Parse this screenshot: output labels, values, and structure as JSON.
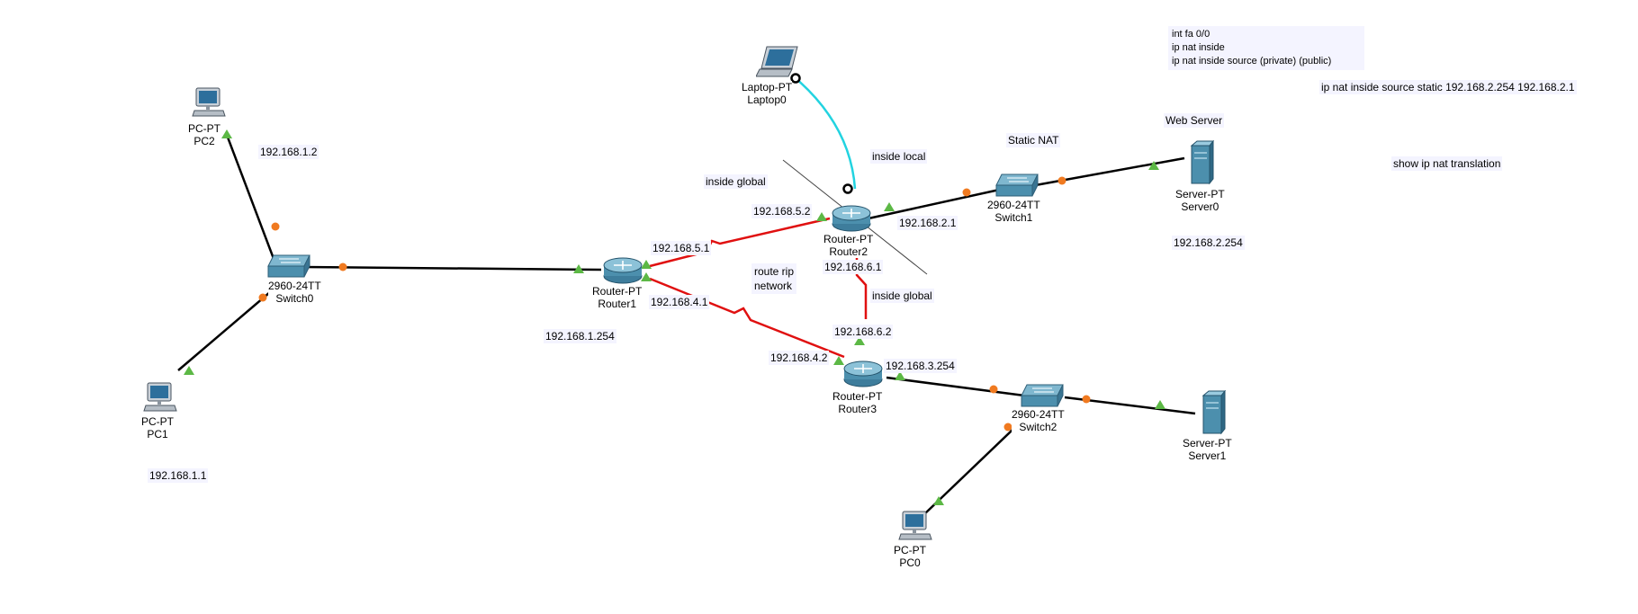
{
  "devices": {
    "pc2": {
      "model": "PC-PT",
      "name": "PC2"
    },
    "pc1": {
      "model": "PC-PT",
      "name": "PC1"
    },
    "pc0": {
      "model": "PC-PT",
      "name": "PC0"
    },
    "laptop0": {
      "model": "Laptop-PT",
      "name": "Laptop0"
    },
    "switch0": {
      "model": "2960-24TT",
      "name": "Switch0"
    },
    "switch1": {
      "model": "2960-24TT",
      "name": "Switch1"
    },
    "switch2": {
      "model": "2960-24TT",
      "name": "Switch2"
    },
    "router1": {
      "model": "Router-PT",
      "name": "Router1"
    },
    "router2": {
      "model": "Router-PT",
      "name": "Router2"
    },
    "router3": {
      "model": "Router-PT",
      "name": "Router3"
    },
    "server0": {
      "model": "Server-PT",
      "name": "Server0"
    },
    "server1": {
      "model": "Server-PT",
      "name": "Server1"
    }
  },
  "labels": {
    "pc2_ip": "192.168.1.2",
    "pc1_ip": "192.168.1.1",
    "router1_lan": "192.168.1.254",
    "r1_s1": "192.168.5.1",
    "r1_s2": "192.168.4.1",
    "r2_s1": "192.168.5.2",
    "r2_lan": "192.168.2.1",
    "r2_s2": "192.168.6.1",
    "r3_s1": "192.168.6.2",
    "r3_s2": "192.168.4.2",
    "r3_lan": "192.168.3.254",
    "server0_ip": "192.168.2.254",
    "inside_global_1": "inside global",
    "inside_global_2": "inside global",
    "inside_local": "inside local",
    "static_nat": "Static NAT",
    "web_server": "Web Server",
    "route_rip_1": "route rip",
    "route_rip_2": "network",
    "show_cmd": "show ip nat translation",
    "static_cmd": "ip nat inside source static 192.168.2.254 192.168.2.1"
  },
  "config_note": {
    "line1": "int fa 0/0",
    "line2": "ip nat inside",
    "line3": "ip nat inside source (private) (public)"
  },
  "colors": {
    "copper": "#000000",
    "serial": "#e01010",
    "console": "#22d3e0",
    "link_up": "#5cb845",
    "port": "#f07a20"
  }
}
